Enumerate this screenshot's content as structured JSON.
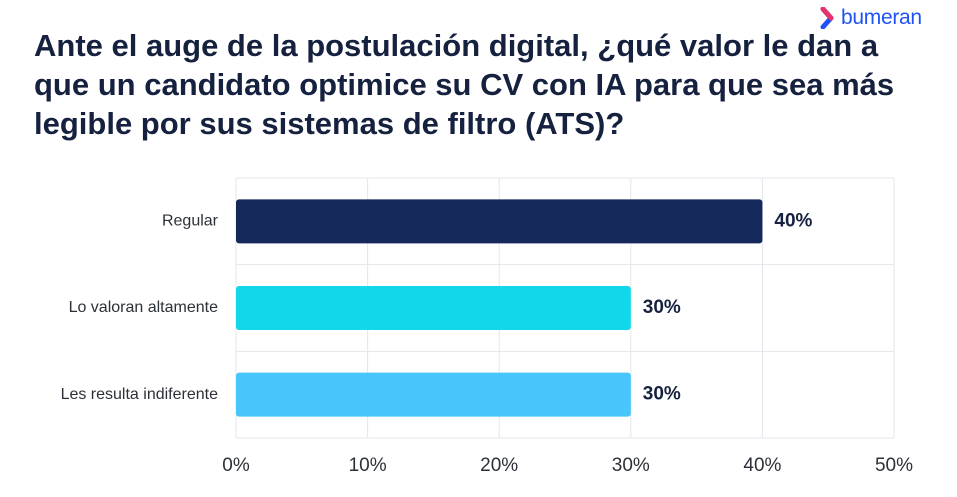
{
  "brand": {
    "name": "bumeran",
    "logo_icon": "chevron-right-icon",
    "color": "#1f53f5"
  },
  "chart_data": {
    "type": "bar",
    "orientation": "horizontal",
    "title": "Ante el auge de la postulación digital, ¿qué valor le dan a que un candidato optimice su CV con IA para que sea más legible por sus sistemas de filtro (ATS)?",
    "categories": [
      "Regular",
      "Lo valoran altamente",
      "Les resulta indiferente"
    ],
    "values": [
      40,
      30,
      30
    ],
    "value_labels": [
      "40%",
      "30%",
      "30%"
    ],
    "bar_colors": [
      "#14285a",
      "#10d8ea",
      "#46c6fa"
    ],
    "xlim": [
      0,
      50
    ],
    "x_ticks": [
      0,
      10,
      20,
      30,
      40,
      50
    ],
    "x_tick_labels": [
      "0%",
      "10%",
      "20%",
      "30%",
      "40%",
      "50%"
    ],
    "xlabel": "",
    "ylabel": "",
    "grid": true,
    "legend": "none"
  }
}
